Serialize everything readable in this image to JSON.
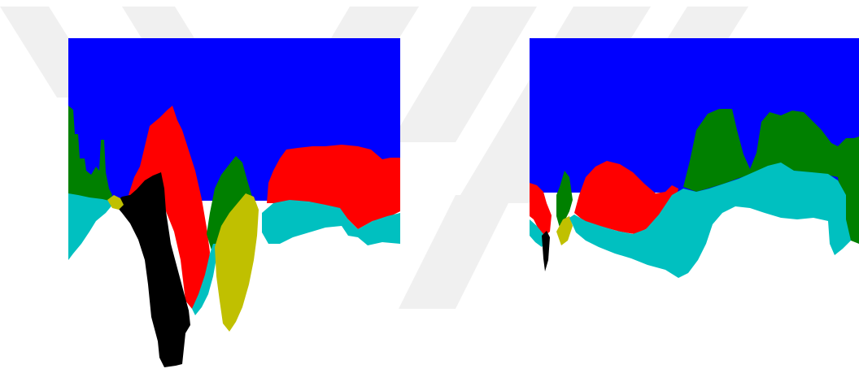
{
  "colors": {
    "background": "#ffffff",
    "watermark": "#f0f0f0",
    "region_blue": "#0000ff",
    "region_green": "#008000",
    "region_red": "#ff0000",
    "region_cyan": "#00c0c0",
    "region_black": "#000000",
    "region_yellow": "#c0c000"
  },
  "panels": [
    {
      "name": "left-panel",
      "regions": [
        "blue",
        "green",
        "cyan",
        "red",
        "black",
        "yellow"
      ]
    },
    {
      "name": "right-panel",
      "regions": [
        "blue",
        "green",
        "cyan",
        "red",
        "black",
        "yellow"
      ]
    }
  ]
}
